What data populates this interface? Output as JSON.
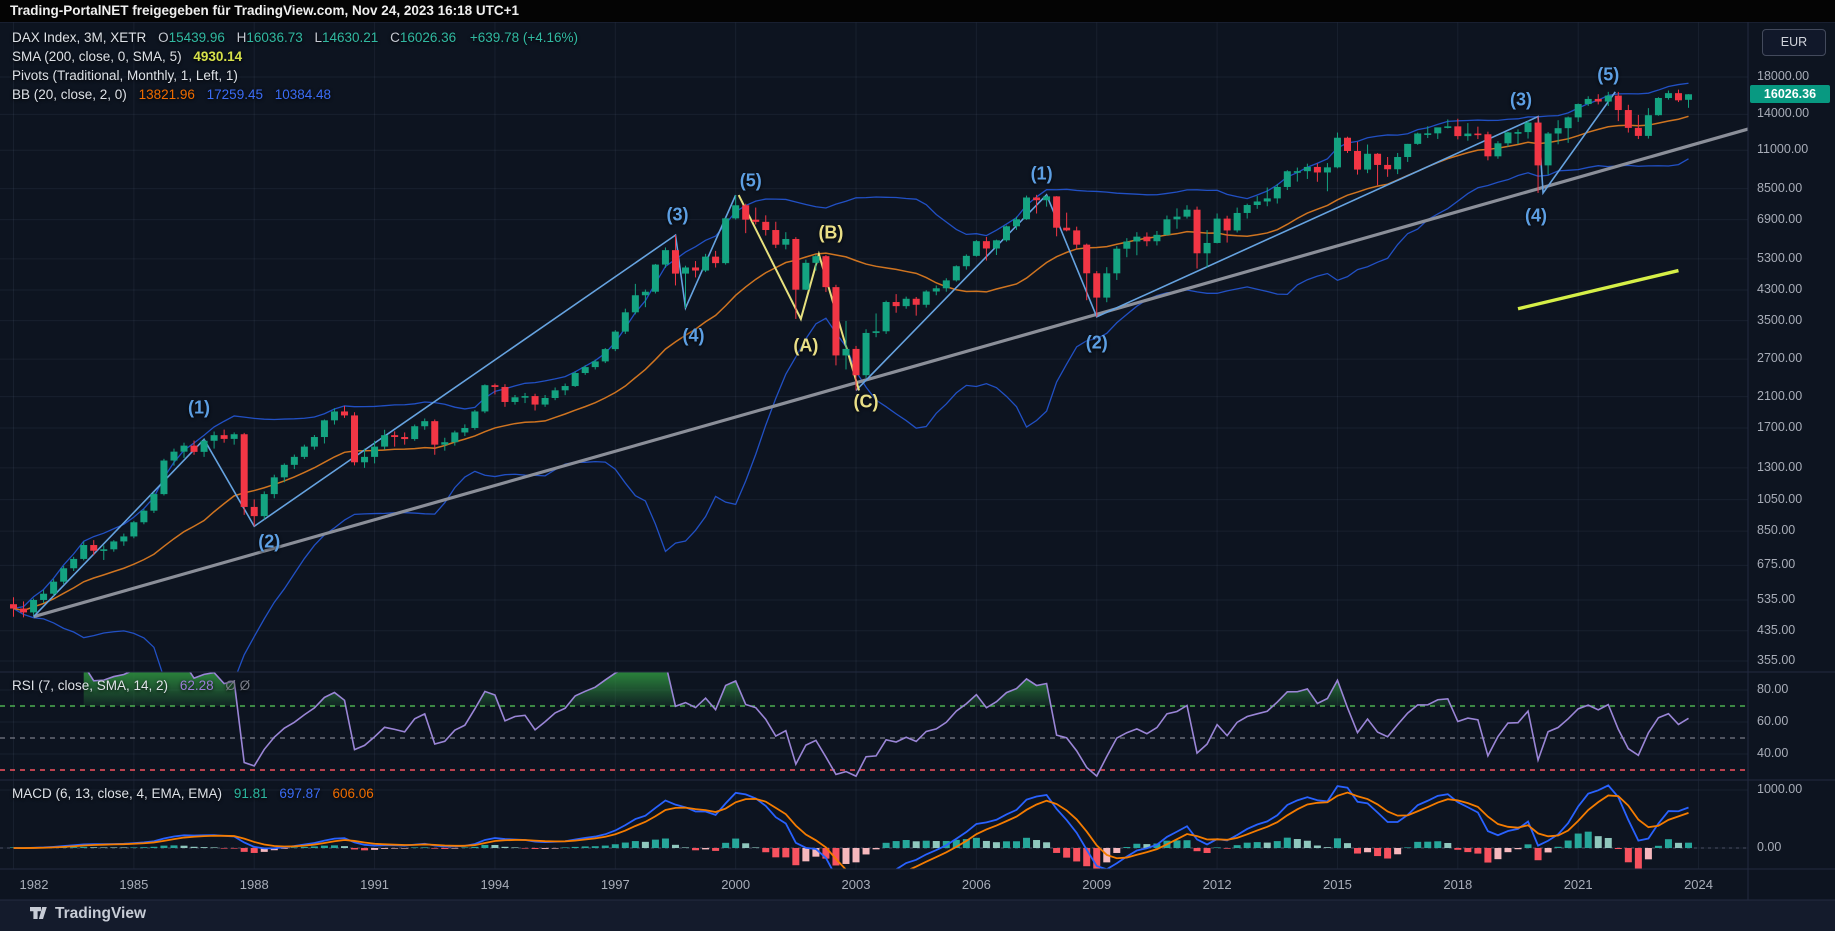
{
  "watermark": {
    "text": "Trading-PortalNET freigegeben für TradingView.com, Nov 24, 2023 16:18 UTC+1"
  },
  "legend": {
    "main": {
      "title": "DAX Index, 3M, XETR",
      "ohlc": [
        {
          "label": "O",
          "value": "15439.96"
        },
        {
          "label": "H",
          "value": "16036.73"
        },
        {
          "label": "L",
          "value": "14630.21"
        },
        {
          "label": "C",
          "value": "16026.36"
        }
      ],
      "change": "+639.78 (+4.16%)"
    },
    "sma": {
      "label": "SMA (200, close, 0, SMA, 5)",
      "value": "4930.14"
    },
    "pivots": {
      "label": "Pivots (Traditional, Monthly, 1, Left, 1)"
    },
    "bb": {
      "label": "BB (20, close, 2, 0)",
      "basis": "13821.96",
      "upper": "17259.45",
      "lower": "10384.48"
    },
    "rsi": {
      "label": "RSI (7, close, SMA, 14, 2)",
      "value": "62.28",
      "extra": "Ø  Ø"
    },
    "macd": {
      "label": "MACD (6, 13, close, 4, EMA, EMA)",
      "hist": "91.81",
      "macd": "697.87",
      "signal": "606.06"
    }
  },
  "axis": {
    "currency": "EUR",
    "last_price": "16026.36",
    "price_ticks": [
      18000,
      14000,
      11000,
      8500,
      6900,
      5300,
      4300,
      3500,
      2700,
      2100,
      1700,
      1300,
      1050,
      850,
      675,
      535,
      435,
      355
    ],
    "rsi_ticks": [
      80,
      60,
      40
    ],
    "macd_ticks": [
      1000,
      0
    ],
    "years": [
      1982,
      1985,
      1988,
      1991,
      1994,
      1997,
      2000,
      2003,
      2006,
      2009,
      2012,
      2015,
      2018,
      2021,
      2024
    ]
  },
  "footer": {
    "brand": "TradingView"
  },
  "colors": {
    "up": "#14a381",
    "down": "#f23645",
    "bb_band": "#2457d6",
    "bb_basis": "#cf7420",
    "elliott_blue": "#66a3e0",
    "elliott_yellow": "#e6e07e",
    "gray_trend": "#8b8f99",
    "neon_segment": "#d6ef47",
    "rsi_line": "#9a85d6",
    "rsi_upper": "#4caf50",
    "rsi_mid": "#787b86",
    "rsi_lower": "#f7525f",
    "macd_line": "#2962ff",
    "macd_signal": "#f57c00",
    "hist_up": "#26a69a",
    "hist_up_weak": "#8fc7bd",
    "hist_down": "#f7525f",
    "hist_down_weak": "#f6b8bd",
    "accent": "#089981",
    "label_blue": "#5d9fe3",
    "label_yellow": "#e9df87"
  },
  "chart_data": {
    "type": "candlestick",
    "symbol": "DAX Index",
    "timeframe": "3M",
    "exchange": "XETR",
    "scale": "log",
    "start_year": 1982,
    "candles_per_year": 4,
    "title": "DAX Index 3M with SMA, Pivots, BB, RSI, MACD and Elliott wave count",
    "indicators": {
      "bollinger": {
        "length": 20,
        "mult": 2
      },
      "rsi": {
        "length": 7,
        "levels": [
          70,
          50,
          30
        ],
        "range_labels": [
          80,
          60,
          40
        ]
      },
      "macd": {
        "fast": 6,
        "slow": 13,
        "signal": 4,
        "range_labels": [
          1000,
          0
        ]
      }
    },
    "ohlc": [
      [
        520,
        545,
        478,
        505
      ],
      [
        505,
        530,
        476,
        492
      ],
      [
        492,
        540,
        484,
        535
      ],
      [
        535,
        572,
        524,
        558
      ],
      [
        558,
        615,
        550,
        605
      ],
      [
        605,
        672,
        595,
        662
      ],
      [
        662,
        715,
        650,
        705
      ],
      [
        705,
        792,
        698,
        774
      ],
      [
        774,
        800,
        724,
        745
      ],
      [
        745,
        772,
        700,
        752
      ],
      [
        752,
        800,
        740,
        793
      ],
      [
        793,
        836,
        770,
        820
      ],
      [
        820,
        910,
        810,
        902
      ],
      [
        902,
        985,
        890,
        975
      ],
      [
        975,
        1105,
        960,
        1090
      ],
      [
        1090,
        1382,
        1080,
        1366
      ],
      [
        1366,
        1480,
        1320,
        1450
      ],
      [
        1450,
        1540,
        1390,
        1510
      ],
      [
        1510,
        1562,
        1420,
        1448
      ],
      [
        1448,
        1575,
        1400,
        1560
      ],
      [
        1560,
        1660,
        1480,
        1620
      ],
      [
        1620,
        1682,
        1540,
        1580
      ],
      [
        1580,
        1650,
        1520,
        1630
      ],
      [
        1630,
        1645,
        948,
        1000
      ],
      [
        1000,
        1052,
        878,
        940
      ],
      [
        940,
        1110,
        918,
        1090
      ],
      [
        1090,
        1242,
        1060,
        1220
      ],
      [
        1220,
        1340,
        1180,
        1327
      ],
      [
        1327,
        1422,
        1290,
        1400
      ],
      [
        1400,
        1520,
        1380,
        1500
      ],
      [
        1500,
        1622,
        1470,
        1600
      ],
      [
        1600,
        1800,
        1532,
        1790
      ],
      [
        1790,
        1940,
        1740,
        1900
      ],
      [
        1900,
        1972,
        1820,
        1850
      ],
      [
        1850,
        1890,
        1322,
        1350
      ],
      [
        1350,
        1480,
        1300,
        1400
      ],
      [
        1400,
        1560,
        1340,
        1500
      ],
      [
        1500,
        1680,
        1470,
        1620
      ],
      [
        1620,
        1662,
        1500,
        1600
      ],
      [
        1600,
        1650,
        1520,
        1578
      ],
      [
        1578,
        1740,
        1560,
        1720
      ],
      [
        1720,
        1812,
        1680,
        1780
      ],
      [
        1780,
        1800,
        1420,
        1520
      ],
      [
        1520,
        1592,
        1460,
        1545
      ],
      [
        1545,
        1670,
        1510,
        1650
      ],
      [
        1650,
        1742,
        1610,
        1700
      ],
      [
        1700,
        1920,
        1680,
        1900
      ],
      [
        1900,
        2280,
        1878,
        2267
      ],
      [
        2267,
        2292,
        2130,
        2240
      ],
      [
        2240,
        2282,
        1960,
        2025
      ],
      [
        2025,
        2122,
        1990,
        2090
      ],
      [
        2090,
        2152,
        2010,
        2107
      ],
      [
        2107,
        2140,
        1912,
        1990
      ],
      [
        1990,
        2122,
        1960,
        2080
      ],
      [
        2080,
        2232,
        2050,
        2190
      ],
      [
        2190,
        2292,
        2120,
        2254
      ],
      [
        2254,
        2490,
        2240,
        2460
      ],
      [
        2460,
        2592,
        2430,
        2560
      ],
      [
        2560,
        2692,
        2520,
        2660
      ],
      [
        2660,
        2910,
        2630,
        2889
      ],
      [
        2889,
        3282,
        2850,
        3250
      ],
      [
        3250,
        3792,
        3200,
        3700
      ],
      [
        3700,
        4480,
        3650,
        4150
      ],
      [
        4150,
        4312,
        3830,
        4250
      ],
      [
        4250,
        5122,
        4200,
        5100
      ],
      [
        5100,
        5722,
        4990,
        5620
      ],
      [
        5620,
        6217,
        4433,
        4800
      ],
      [
        4800,
        5062,
        3810,
        5002
      ],
      [
        5002,
        5222,
        4678,
        4900
      ],
      [
        4900,
        5482,
        4850,
        5380
      ],
      [
        5380,
        5592,
        5000,
        5150
      ],
      [
        5150,
        6992,
        5100,
        6958
      ],
      [
        6958,
        8136,
        6900,
        7599
      ],
      [
        7599,
        7682,
        6300,
        6898
      ],
      [
        6898,
        7482,
        6680,
        6798
      ],
      [
        6798,
        7102,
        6200,
        6434
      ],
      [
        6434,
        6802,
        5700,
        5830
      ],
      [
        5830,
        6342,
        5650,
        6058
      ],
      [
        6058,
        6132,
        3539,
        4308
      ],
      [
        4308,
        5272,
        4300,
        5160
      ],
      [
        5160,
        5467,
        4900,
        5397
      ],
      [
        5397,
        5442,
        4240,
        4383
      ],
      [
        4383,
        4452,
        2590,
        2769
      ],
      [
        2769,
        3492,
        2520,
        2893
      ],
      [
        2893,
        2952,
        2188,
        2424
      ],
      [
        2424,
        3302,
        2380,
        3221
      ],
      [
        3221,
        3672,
        3130,
        3257
      ],
      [
        3257,
        4002,
        3200,
        3965
      ],
      [
        3965,
        4182,
        3690,
        3857
      ],
      [
        3857,
        4112,
        3790,
        4053
      ],
      [
        4053,
        4102,
        3618,
        3893
      ],
      [
        3893,
        4292,
        3820,
        4256
      ],
      [
        4256,
        4432,
        4150,
        4348
      ],
      [
        4348,
        4652,
        4250,
        4586
      ],
      [
        4586,
        5072,
        4550,
        5044
      ],
      [
        5044,
        5462,
        4930,
        5408
      ],
      [
        5408,
        6012,
        5380,
        5970
      ],
      [
        5970,
        6142,
        5240,
        5683
      ],
      [
        5683,
        6032,
        5440,
        6004
      ],
      [
        6004,
        6632,
        5950,
        6597
      ],
      [
        6597,
        7042,
        6440,
        6917
      ],
      [
        6917,
        8110,
        6890,
        8007
      ],
      [
        8007,
        8151,
        7190,
        7861
      ],
      [
        7861,
        8122,
        7530,
        8067
      ],
      [
        8067,
        8082,
        6168,
        6535
      ],
      [
        6535,
        7232,
        6380,
        6418
      ],
      [
        6418,
        6582,
        5670,
        5831
      ],
      [
        5831,
        5872,
        4014,
        4810
      ],
      [
        4810,
        4882,
        3589,
        4085
      ],
      [
        4085,
        5012,
        3960,
        4809
      ],
      [
        4809,
        5772,
        4600,
        5675
      ],
      [
        5675,
        6092,
        5360,
        5957
      ],
      [
        5957,
        6342,
        5430,
        6154
      ],
      [
        6154,
        6332,
        5770,
        5966
      ],
      [
        5966,
        6392,
        5800,
        6229
      ],
      [
        6229,
        7092,
        6200,
        6914
      ],
      [
        6914,
        7442,
        6490,
        7041
      ],
      [
        7041,
        7602,
        6950,
        7376
      ],
      [
        7376,
        7532,
        4966,
        5502
      ],
      [
        5502,
        6432,
        5000,
        5898
      ],
      [
        5898,
        7192,
        5880,
        6947
      ],
      [
        6947,
        7082,
        5914,
        6416
      ],
      [
        6416,
        7482,
        6330,
        7216
      ],
      [
        7216,
        7682,
        6950,
        7612
      ],
      [
        7612,
        8082,
        7420,
        7795
      ],
      [
        7795,
        8562,
        7550,
        7959
      ],
      [
        7959,
        8772,
        7690,
        8594
      ],
      [
        8594,
        9622,
        8420,
        9552
      ],
      [
        9552,
        9792,
        8910,
        9556
      ],
      [
        9556,
        10052,
        9070,
        9833
      ],
      [
        9833,
        10062,
        8900,
        9474
      ],
      [
        9474,
        10092,
        8350,
        9806
      ],
      [
        9806,
        12390,
        9740,
        11966
      ],
      [
        11966,
        12052,
        10800,
        10945
      ],
      [
        10945,
        11642,
        9340,
        9660
      ],
      [
        9660,
        11432,
        9430,
        10743
      ],
      [
        10743,
        10792,
        8699,
        9966
      ],
      [
        9966,
        10512,
        9200,
        9680
      ],
      [
        9680,
        10802,
        9370,
        10511
      ],
      [
        10511,
        11482,
        10170,
        11481
      ],
      [
        11481,
        12382,
        11410,
        12313
      ],
      [
        12313,
        12922,
        11940,
        12325
      ],
      [
        12325,
        12682,
        11870,
        12829
      ],
      [
        12829,
        13532,
        12740,
        12918
      ],
      [
        12918,
        13596,
        11830,
        12097
      ],
      [
        12097,
        13202,
        11730,
        12306
      ],
      [
        12306,
        12892,
        11860,
        12247
      ],
      [
        12247,
        12462,
        10279,
        10559
      ],
      [
        10559,
        11692,
        10390,
        11526
      ],
      [
        11526,
        12442,
        11270,
        12399
      ],
      [
        12399,
        12662,
        11470,
        12428
      ],
      [
        12428,
        13432,
        11900,
        13249
      ],
      [
        13249,
        13795,
        8256,
        9936
      ],
      [
        9936,
        12432,
        9340,
        12311
      ],
      [
        12311,
        13462,
        11450,
        12761
      ],
      [
        12761,
        13802,
        11560,
        13719
      ],
      [
        13719,
        15062,
        13310,
        15008
      ],
      [
        15008,
        15812,
        14820,
        15531
      ],
      [
        15531,
        16032,
        14970,
        15261
      ],
      [
        15261,
        16290,
        14810,
        15885
      ],
      [
        15885,
        16285,
        13380,
        14415
      ],
      [
        14415,
        14932,
        12390,
        12784
      ],
      [
        12784,
        13952,
        11862,
        12114
      ],
      [
        12114,
        14602,
        11900,
        13924
      ],
      [
        13924,
        15712,
        13870,
        15629
      ],
      [
        15629,
        16432,
        15460,
        16148
      ],
      [
        16148,
        16532,
        15210,
        15387
      ],
      [
        15440,
        16037,
        14630,
        16026
      ]
    ],
    "annotations": {
      "wave_labels": [
        {
          "t": "(1)",
          "i": 18.5,
          "p": 1950,
          "c": "blue"
        },
        {
          "t": "(2)",
          "i": 25.5,
          "p": 790,
          "c": "blue"
        },
        {
          "t": "(3)",
          "i": 66.2,
          "p": 7100,
          "c": "blue"
        },
        {
          "t": "(4)",
          "i": 67.8,
          "p": 3150,
          "c": "blue"
        },
        {
          "t": "(5)",
          "i": 73.5,
          "p": 8950,
          "c": "blue"
        },
        {
          "t": "(A)",
          "i": 79.0,
          "p": 2950,
          "c": "yellow"
        },
        {
          "t": "(B)",
          "i": 81.5,
          "p": 6300,
          "c": "yellow"
        },
        {
          "t": "(C)",
          "i": 85.0,
          "p": 2020,
          "c": "yellow"
        },
        {
          "t": "(1)",
          "i": 102.5,
          "p": 9400,
          "c": "blue"
        },
        {
          "t": "(2)",
          "i": 108.0,
          "p": 3020,
          "c": "blue"
        },
        {
          "t": "(3)",
          "i": 150.3,
          "p": 15400,
          "c": "blue"
        },
        {
          "t": "(4)",
          "i": 151.8,
          "p": 7050,
          "c": "blue"
        },
        {
          "t": "(5)",
          "i": 159.0,
          "p": 18300,
          "c": "blue"
        }
      ],
      "zigzag_blue": [
        [
          [
            2,
            478
          ],
          [
            19,
            1575
          ],
          [
            24,
            878
          ],
          [
            66,
            6217
          ],
          [
            67,
            3810
          ],
          [
            72,
            8136
          ]
        ],
        [
          [
            84,
            2188
          ],
          [
            103,
            8151
          ],
          [
            108,
            3589
          ],
          [
            152,
            13795
          ],
          [
            152.5,
            8256
          ],
          [
            159.7,
            16290
          ]
        ]
      ],
      "zigzag_yellow": [
        [
          [
            72.3,
            8136
          ],
          [
            78.5,
            3539
          ],
          [
            80.3,
            5467
          ],
          [
            84.3,
            2188
          ]
        ]
      ],
      "trendline_gray": [
        [
          2,
          478
        ],
        [
          173,
          12700
        ]
      ],
      "segment_neon": [
        [
          150,
          3790
        ],
        [
          166,
          4900
        ]
      ]
    }
  }
}
